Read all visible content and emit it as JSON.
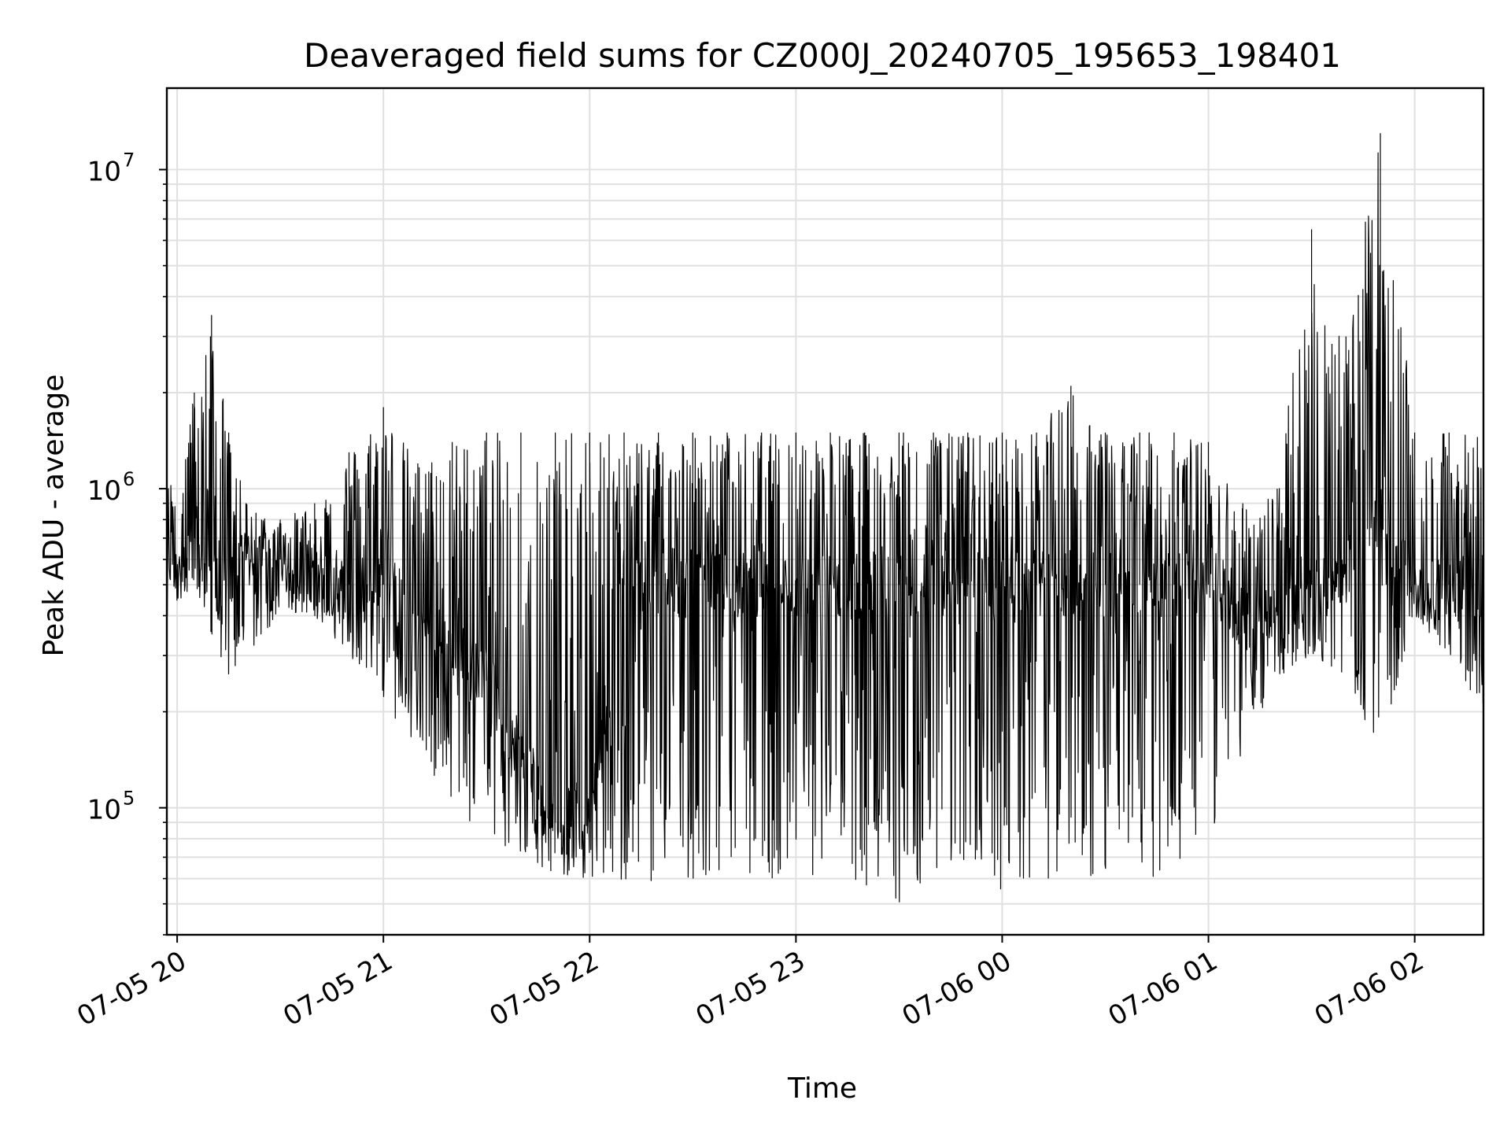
{
  "chart_data": {
    "type": "line",
    "title": "Deaveraged field sums for CZ000J_20240705_195653_198401",
    "xlabel": "Time",
    "ylabel": "Peak ADU - average",
    "yscale": "log",
    "ylim": [
      40000,
      18000000
    ],
    "xlim": [
      "2024-07-05 19:57",
      "2024-07-06 02:20"
    ],
    "grid": true,
    "line_color": "#000000",
    "x_ticks": [
      {
        "label": "07-05 20",
        "value": "2024-07-05 20:00"
      },
      {
        "label": "07-05 21",
        "value": "2024-07-05 21:00"
      },
      {
        "label": "07-05 22",
        "value": "2024-07-05 22:00"
      },
      {
        "label": "07-05 23",
        "value": "2024-07-05 23:00"
      },
      {
        "label": "07-06 00",
        "value": "2024-07-06 00:00"
      },
      {
        "label": "07-06 01",
        "value": "2024-07-06 01:00"
      },
      {
        "label": "07-06 02",
        "value": "2024-07-06 02:00"
      }
    ],
    "y_ticks": [
      {
        "base": "10",
        "exp": "5",
        "value": 100000
      },
      {
        "base": "10",
        "exp": "6",
        "value": 1000000
      },
      {
        "base": "10",
        "exp": "7",
        "value": 10000000
      }
    ],
    "series": [
      {
        "x": [
          "2024-07-05 19:57",
          "2024-07-05 20:05",
          "2024-07-05 20:10",
          "2024-07-05 20:15",
          "2024-07-05 20:20",
          "2024-07-05 20:30",
          "2024-07-05 20:40",
          "2024-07-05 20:50",
          "2024-07-05 21:00",
          "2024-07-05 21:10",
          "2024-07-05 21:20",
          "2024-07-05 21:30",
          "2024-07-05 21:40",
          "2024-07-05 21:50",
          "2024-07-05 22:00",
          "2024-07-05 22:10",
          "2024-07-05 22:20",
          "2024-07-05 22:30",
          "2024-07-05 22:40",
          "2024-07-05 22:50",
          "2024-07-05 23:00",
          "2024-07-05 23:10",
          "2024-07-05 23:20",
          "2024-07-05 23:30",
          "2024-07-05 23:40",
          "2024-07-05 23:50",
          "2024-07-06 00:00",
          "2024-07-06 00:10",
          "2024-07-06 00:20",
          "2024-07-06 00:30",
          "2024-07-06 00:40",
          "2024-07-06 00:50",
          "2024-07-06 01:00",
          "2024-07-06 01:10",
          "2024-07-06 01:20",
          "2024-07-06 01:30",
          "2024-07-06 01:40",
          "2024-07-06 01:50",
          "2024-07-06 02:00",
          "2024-07-06 02:10",
          "2024-07-06 02:20"
        ],
        "max": [
          1000000,
          2000000,
          3500000,
          1500000,
          900000,
          800000,
          900000,
          1300000,
          1800000,
          1200000,
          1400000,
          1500000,
          1500000,
          1500000,
          1500000,
          1500000,
          1500000,
          1500000,
          1500000,
          1500000,
          1500000,
          1500000,
          1500000,
          1500000,
          1500000,
          1500000,
          1500000,
          1500000,
          2100000,
          1500000,
          1500000,
          1500000,
          1400000,
          900000,
          1000000,
          6500000,
          3000000,
          13000000,
          1500000,
          1500000,
          1500000
        ],
        "min": [
          400000,
          500000,
          350000,
          250000,
          300000,
          400000,
          400000,
          300000,
          200000,
          150000,
          100000,
          80000,
          70000,
          60000,
          60000,
          55000,
          60000,
          60000,
          60000,
          60000,
          60000,
          60000,
          55000,
          50000,
          60000,
          60000,
          55000,
          60000,
          60000,
          60000,
          60000,
          60000,
          80000,
          150000,
          250000,
          300000,
          250000,
          150000,
          400000,
          300000,
          200000
        ],
        "typical": [
          600000,
          700000,
          600000,
          500000,
          600000,
          600000,
          500000,
          500000,
          500000,
          400000,
          300000,
          250000,
          150000,
          90000,
          90000,
          500000,
          500000,
          500000,
          500000,
          500000,
          500000,
          500000,
          500000,
          500000,
          500000,
          500000,
          500000,
          500000,
          500000,
          500000,
          500000,
          500000,
          500000,
          400000,
          400000,
          500000,
          550000,
          800000,
          500000,
          500000,
          500000
        ]
      }
    ]
  }
}
